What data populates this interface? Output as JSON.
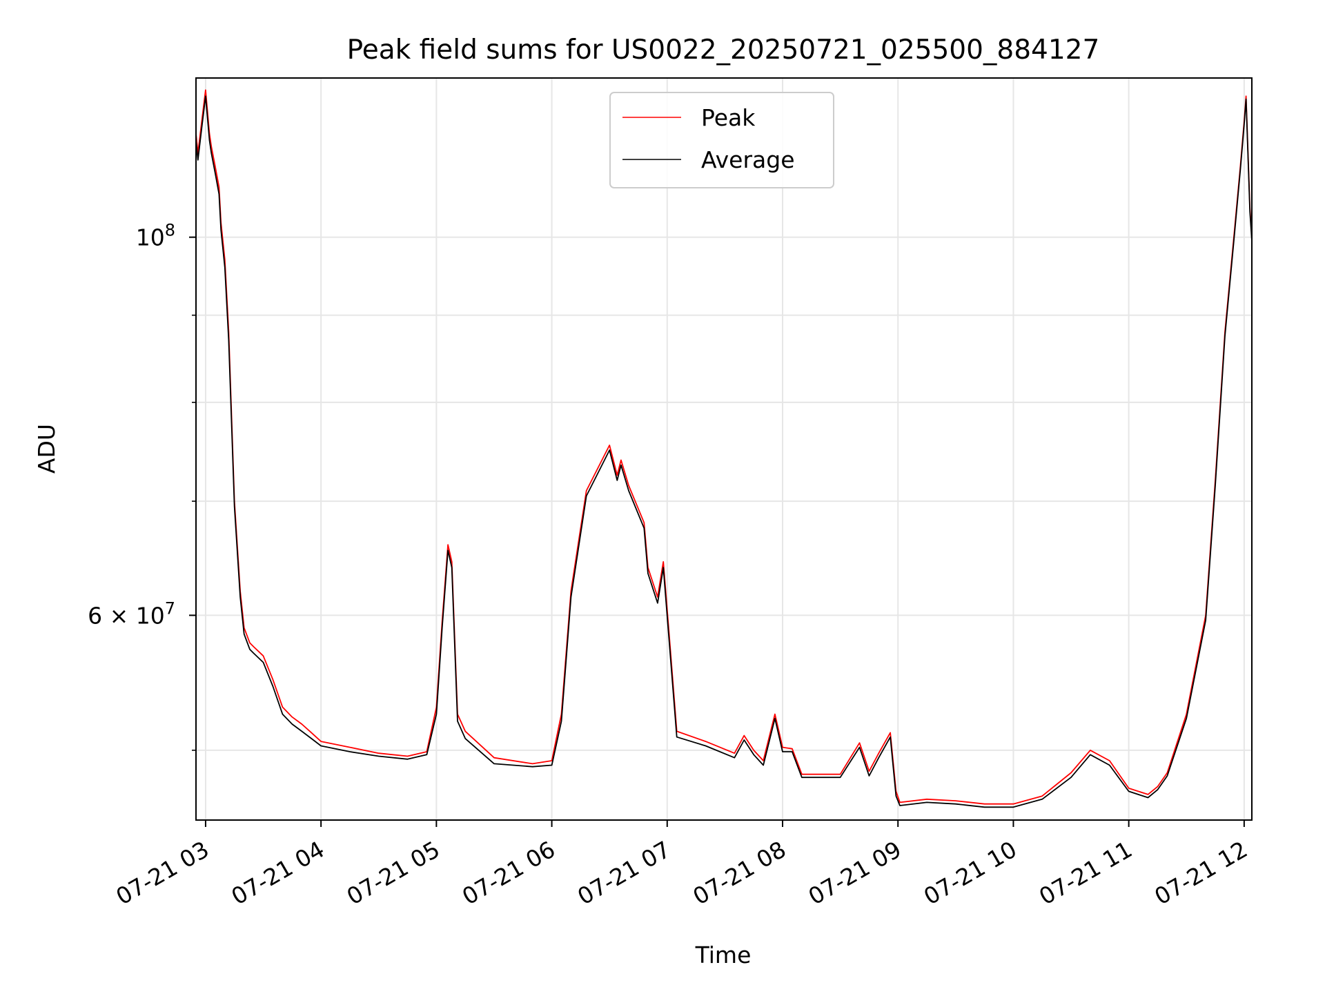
{
  "chart_data": {
    "type": "line",
    "title": "Peak field sums for US0022_20250721_025500_884127",
    "xlabel": "Time",
    "ylabel": "ADU",
    "yscale": "log",
    "xlim": [
      "2025-07-21T02:55",
      "2025-07-21T12:04"
    ],
    "ylim": [
      45500000,
      124000000
    ],
    "grid": true,
    "legend_position": "top-center",
    "x_tick_labels": [
      "07-21 03",
      "07-21 04",
      "07-21 05",
      "07-21 06",
      "07-21 07",
      "07-21 08",
      "07-21 09",
      "07-21 10",
      "07-21 11",
      "07-21 12"
    ],
    "x_tick_values": [
      "2025-07-21T03:00",
      "2025-07-21T04:00",
      "2025-07-21T05:00",
      "2025-07-21T06:00",
      "2025-07-21T07:00",
      "2025-07-21T08:00",
      "2025-07-21T09:00",
      "2025-07-21T10:00",
      "2025-07-21T11:00",
      "2025-07-21T12:00"
    ],
    "y_major_ticks": [
      {
        "value": 100000000,
        "label_base": "10",
        "label_exp": "8"
      },
      {
        "value": 60000000,
        "label_base": "6 × 10",
        "label_exp": "7"
      }
    ],
    "y_grid_values": [
      50000000,
      60000000,
      70000000,
      80000000,
      90000000,
      100000000
    ],
    "x": [
      "2025-07-21T02:55",
      "2025-07-21T02:56",
      "2025-07-21T02:58",
      "2025-07-21T03:00",
      "2025-07-21T03:02",
      "2025-07-21T03:03",
      "2025-07-21T03:05",
      "2025-07-21T03:07",
      "2025-07-21T03:08",
      "2025-07-21T03:10",
      "2025-07-21T03:12",
      "2025-07-21T03:15",
      "2025-07-21T03:18",
      "2025-07-21T03:20",
      "2025-07-21T03:23",
      "2025-07-21T03:25",
      "2025-07-21T03:30",
      "2025-07-21T03:35",
      "2025-07-21T03:40",
      "2025-07-21T03:45",
      "2025-07-21T03:50",
      "2025-07-21T03:55",
      "2025-07-21T04:00",
      "2025-07-21T04:15",
      "2025-07-21T04:30",
      "2025-07-21T04:45",
      "2025-07-21T04:55",
      "2025-07-21T05:00",
      "2025-07-21T05:03",
      "2025-07-21T05:06",
      "2025-07-21T05:08",
      "2025-07-21T05:11",
      "2025-07-21T05:15",
      "2025-07-21T05:30",
      "2025-07-21T05:50",
      "2025-07-21T06:00",
      "2025-07-21T06:05",
      "2025-07-21T06:10",
      "2025-07-21T06:18",
      "2025-07-21T06:30",
      "2025-07-21T06:34",
      "2025-07-21T06:36",
      "2025-07-21T06:40",
      "2025-07-21T06:48",
      "2025-07-21T06:50",
      "2025-07-21T06:55",
      "2025-07-21T06:58",
      "2025-07-21T07:01",
      "2025-07-21T07:05",
      "2025-07-21T07:20",
      "2025-07-21T07:35",
      "2025-07-21T07:40",
      "2025-07-21T07:45",
      "2025-07-21T07:50",
      "2025-07-21T07:56",
      "2025-07-21T08:00",
      "2025-07-21T08:05",
      "2025-07-21T08:10",
      "2025-07-21T08:30",
      "2025-07-21T08:40",
      "2025-07-21T08:45",
      "2025-07-21T08:50",
      "2025-07-21T08:56",
      "2025-07-21T08:59",
      "2025-07-21T09:01",
      "2025-07-21T09:15",
      "2025-07-21T09:30",
      "2025-07-21T09:45",
      "2025-07-21T10:00",
      "2025-07-21T10:15",
      "2025-07-21T10:30",
      "2025-07-21T10:40",
      "2025-07-21T10:50",
      "2025-07-21T11:00",
      "2025-07-21T11:10",
      "2025-07-21T11:15",
      "2025-07-21T11:20",
      "2025-07-21T11:30",
      "2025-07-21T11:40",
      "2025-07-21T11:45",
      "2025-07-21T11:50",
      "2025-07-21T11:55",
      "2025-07-21T11:58",
      "2025-07-21T12:00",
      "2025-07-21T12:01",
      "2025-07-21T12:03",
      "2025-07-21T12:04"
    ],
    "series": [
      {
        "name": "Peak",
        "color": "#ff0000",
        "values": [
          115000000,
          112000000,
          117000000,
          122000000,
          115000000,
          113000000,
          110000000,
          107000000,
          102000000,
          97000000,
          88000000,
          70000000,
          62000000,
          59000000,
          57800000,
          57500000,
          56800000,
          55000000,
          53000000,
          52300000,
          51800000,
          51200000,
          50600000,
          50200000,
          49800000,
          49600000,
          49900000,
          53000000,
          59500000,
          66000000,
          64500000,
          52500000,
          51300000,
          49500000,
          49100000,
          49300000,
          52500000,
          62000000,
          71000000,
          75500000,
          72500000,
          74000000,
          71500000,
          68000000,
          64000000,
          61500000,
          64500000,
          58500000,
          51300000,
          50600000,
          49800000,
          51000000,
          50000000,
          49300000,
          52500000,
          50200000,
          50100000,
          48400000,
          48400000,
          50500000,
          48600000,
          49800000,
          51200000,
          47300000,
          46600000,
          46800000,
          46700000,
          46500000,
          46500000,
          47000000,
          48500000,
          50000000,
          49300000,
          47500000,
          47100000,
          47600000,
          48500000,
          52500000,
          60000000,
          72000000,
          88000000,
          101000000,
          110000000,
          117000000,
          121000000,
          104000000,
          100000000
        ]
      },
      {
        "name": "Average",
        "color": "#000000",
        "values": [
          114000000,
          111000000,
          116000000,
          121000000,
          114000000,
          112000000,
          109000000,
          106000000,
          101000000,
          96000000,
          87000000,
          69500000,
          61500000,
          58500000,
          57300000,
          57000000,
          56300000,
          54500000,
          52500000,
          51800000,
          51300000,
          50800000,
          50300000,
          49900000,
          49600000,
          49400000,
          49700000,
          52500000,
          59000000,
          65500000,
          64000000,
          52000000,
          50800000,
          49100000,
          48900000,
          49000000,
          52000000,
          61500000,
          70500000,
          75000000,
          72000000,
          73500000,
          71000000,
          67500000,
          63500000,
          61000000,
          64000000,
          58000000,
          50900000,
          50300000,
          49500000,
          50700000,
          49700000,
          49000000,
          52200000,
          49900000,
          49900000,
          48200000,
          48200000,
          50200000,
          48300000,
          49500000,
          50900000,
          47000000,
          46400000,
          46600000,
          46500000,
          46300000,
          46300000,
          46800000,
          48200000,
          49700000,
          49000000,
          47300000,
          46900000,
          47400000,
          48300000,
          52200000,
          59600000,
          71500000,
          87500000,
          100500000,
          109500000,
          116500000,
          120500000,
          103500000,
          99500000
        ]
      }
    ]
  }
}
